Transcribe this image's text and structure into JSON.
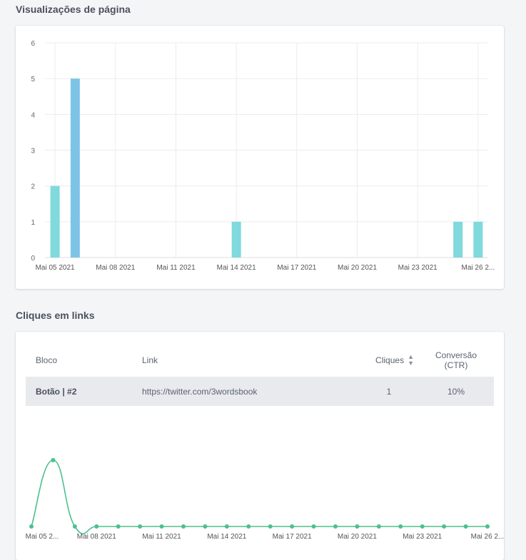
{
  "views_section": {
    "title": "Visualizações de página"
  },
  "clicks_section": {
    "title": "Cliques em links",
    "table": {
      "headers": {
        "block": "Bloco",
        "link": "Link",
        "clicks": "Cliques",
        "conversion_line1": "Conversão",
        "conversion_line2": "(CTR)"
      },
      "rows": [
        {
          "block": "Botão | #2",
          "link": "https://twitter.com/3wordsbook",
          "clicks": "1",
          "conversion": "10%"
        }
      ]
    }
  },
  "chart_data": [
    {
      "type": "bar",
      "x_tick_labels": [
        "Mai 05 2021",
        "Mai 08 2021",
        "Mai 11 2021",
        "Mai 14 2021",
        "Mai 17 2021",
        "Mai 20 2021",
        "Mai 23 2021",
        "Mai 26 2..."
      ],
      "y_tick_labels": [
        "0",
        "1",
        "2",
        "3",
        "4",
        "5",
        "6"
      ],
      "ylim": [
        0,
        6
      ],
      "x": [
        "2021-05-05",
        "2021-05-06",
        "2021-05-14",
        "2021-05-25",
        "2021-05-26"
      ],
      "values": [
        2,
        5,
        1,
        1,
        1
      ],
      "grid": true,
      "colors": {
        "bar": "#7fd9dd",
        "bar_highlight": "#7cc4e6"
      }
    },
    {
      "type": "line",
      "x_tick_labels": [
        "Mai 05 2...",
        "Mai 08 2021",
        "Mai 11 2021",
        "Mai 14 2021",
        "Mai 17 2021",
        "Mai 20 2021",
        "Mai 23 2021",
        "Mai 26 2..."
      ],
      "x": [
        "2021-05-05",
        "2021-05-06",
        "2021-05-07",
        "2021-05-08",
        "2021-05-09",
        "2021-05-10",
        "2021-05-11",
        "2021-05-12",
        "2021-05-13",
        "2021-05-14",
        "2021-05-15",
        "2021-05-16",
        "2021-05-17",
        "2021-05-18",
        "2021-05-19",
        "2021-05-20",
        "2021-05-21",
        "2021-05-22",
        "2021-05-23",
        "2021-05-24",
        "2021-05-25",
        "2021-05-26"
      ],
      "values": [
        0,
        1,
        0,
        0,
        0,
        0,
        0,
        0,
        0,
        0,
        0,
        0,
        0,
        0,
        0,
        0,
        0,
        0,
        0,
        0,
        0,
        0
      ],
      "grid": false,
      "colors": {
        "line": "#4cc08e"
      }
    }
  ]
}
